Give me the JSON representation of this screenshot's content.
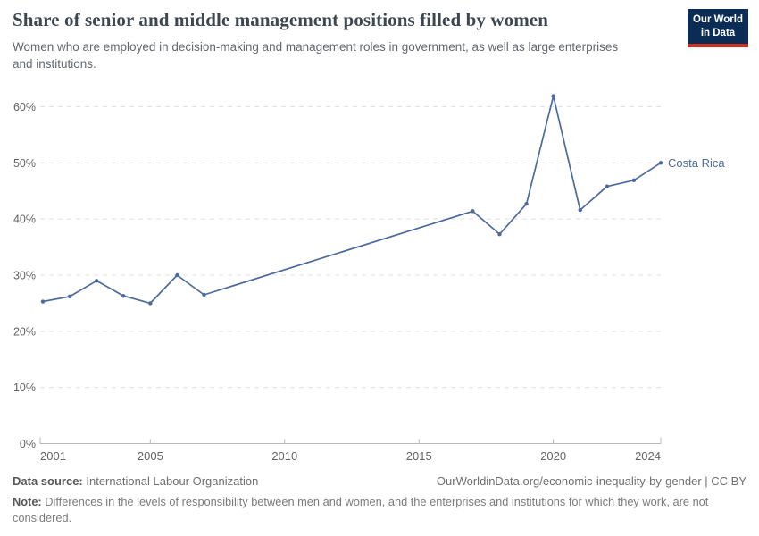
{
  "header": {
    "title": "Share of senior and middle management positions filled by women",
    "subtitle": "Women who are employed in decision-making and management roles in government, as well as large enterprises and institutions.",
    "logo": {
      "line1": "Our World",
      "line2": "in Data",
      "bg_color": "#0b2d55",
      "stripe_color": "#d0321f"
    }
  },
  "chart_data": {
    "type": "line",
    "title": "Share of senior and middle management positions filled by women",
    "xlabel": "",
    "ylabel": "",
    "xlim": [
      2001,
      2024
    ],
    "ylim": [
      0,
      63
    ],
    "grid": "horizontal-dashed",
    "legend_position": "line-end-label",
    "x_ticks": [
      2001,
      2005,
      2010,
      2015,
      2020,
      2024
    ],
    "x_tick_labels": [
      "2001",
      "2005",
      "2010",
      "2015",
      "2020",
      "2024"
    ],
    "y_ticks": [
      0,
      10,
      20,
      30,
      40,
      50,
      60
    ],
    "y_tick_labels": [
      "0%",
      "10%",
      "20%",
      "30%",
      "40%",
      "50%",
      "60%"
    ],
    "series": [
      {
        "name": "Costa Rica",
        "color": "#4C6A9C",
        "points": [
          {
            "year": 2001,
            "value": 25.3
          },
          {
            "year": 2002,
            "value": 26.2
          },
          {
            "year": 2003,
            "value": 29.0
          },
          {
            "year": 2004,
            "value": 26.3
          },
          {
            "year": 2005,
            "value": 25.0
          },
          {
            "year": 2006,
            "value": 30.0
          },
          {
            "year": 2007,
            "value": 26.5
          },
          {
            "year": 2017,
            "value": 41.4
          },
          {
            "year": 2018,
            "value": 37.3
          },
          {
            "year": 2019,
            "value": 42.7
          },
          {
            "year": 2020,
            "value": 61.9
          },
          {
            "year": 2021,
            "value": 41.6
          },
          {
            "year": 2022,
            "value": 45.8
          },
          {
            "year": 2023,
            "value": 46.9
          },
          {
            "year": 2024,
            "value": 50.0
          }
        ]
      }
    ]
  },
  "footer": {
    "datasource_label": "Data source:",
    "datasource_value": " International Labour Organization",
    "url_text": "OurWorldinData.org/economic-inequality-by-gender | CC BY",
    "note_label": "Note:",
    "note_value": " Differences in the levels of responsibility between men and women, and the enterprises and institutions for which they work, are not considered."
  },
  "colors": {
    "line": "#4C6A9C",
    "grid": "#e0e0e0",
    "axis": "#b8b8b8",
    "tick_label": "#636363",
    "title": "#3d4751"
  }
}
